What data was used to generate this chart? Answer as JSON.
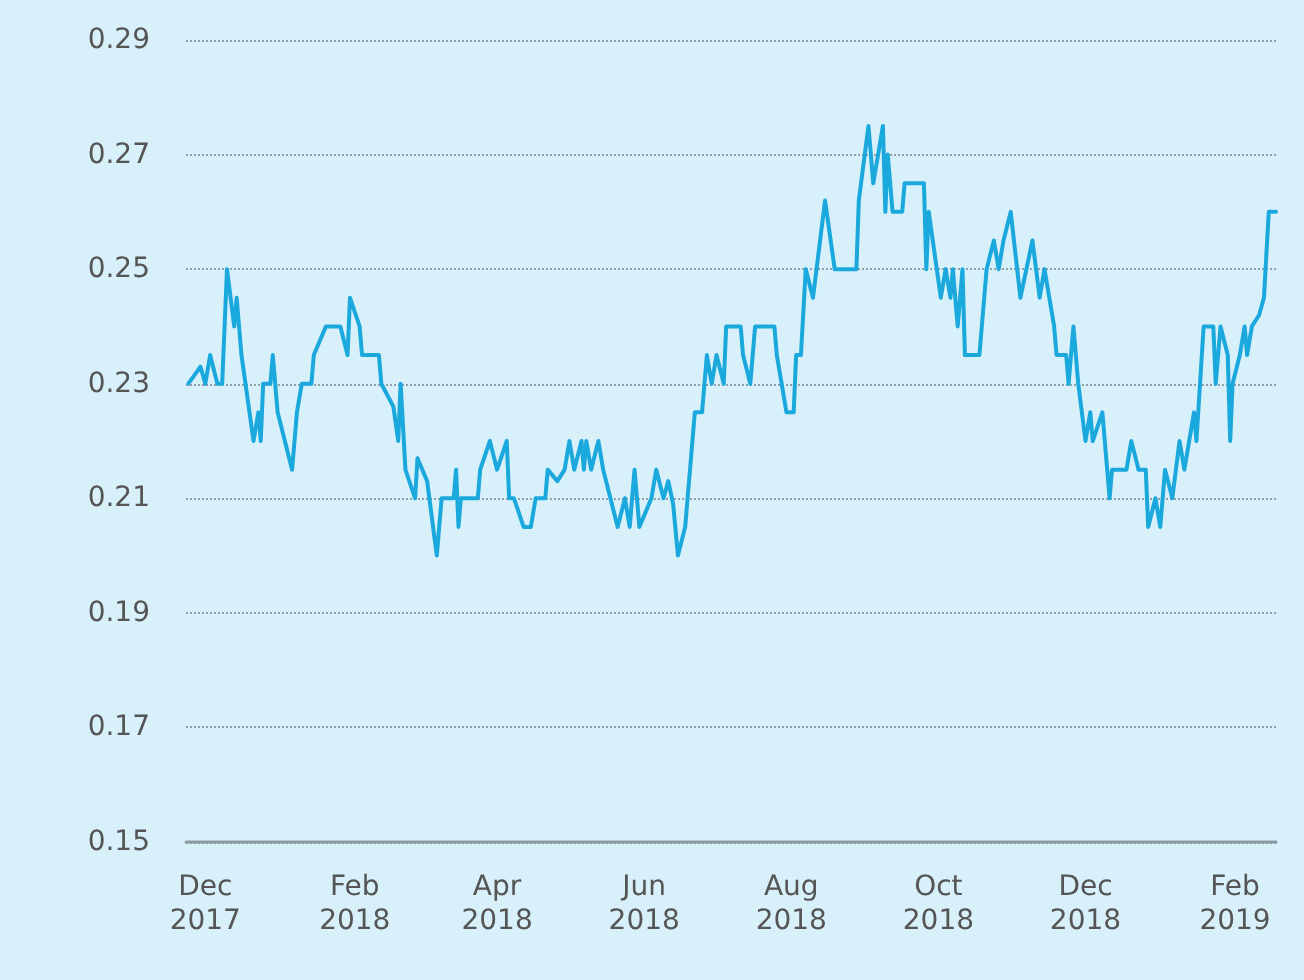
{
  "chart_data": {
    "type": "line",
    "xlim": [
      "2017-11-23",
      "2019-02-18"
    ],
    "ylim": [
      0.15,
      0.29
    ],
    "yticks": [
      0.15,
      0.17,
      0.19,
      0.21,
      0.23,
      0.25,
      0.27,
      0.29
    ],
    "xticks": [
      {
        "value": "2017-12-01",
        "label": "Dec\n2017"
      },
      {
        "value": "2018-02-01",
        "label": "Feb\n2018"
      },
      {
        "value": "2018-04-01",
        "label": "Apr\n2018"
      },
      {
        "value": "2018-06-01",
        "label": "Jun\n2018"
      },
      {
        "value": "2018-08-01",
        "label": "Aug\n2018"
      },
      {
        "value": "2018-10-01",
        "label": "Oct\n2018"
      },
      {
        "value": "2018-12-01",
        "label": "Dec\n2018"
      },
      {
        "value": "2019-02-01",
        "label": "Feb\n2019"
      }
    ],
    "grid": "y",
    "marker": "none",
    "line_style": "solid",
    "x": [
      "2017-11-24",
      "2017-11-29",
      "2017-12-01",
      "2017-12-03",
      "2017-12-06",
      "2017-12-08",
      "2017-12-10",
      "2017-12-13",
      "2017-12-14",
      "2017-12-16",
      "2017-12-21",
      "2017-12-23",
      "2017-12-24",
      "2017-12-25",
      "2017-12-28",
      "2017-12-29",
      "2017-12-31",
      "2018-01-06",
      "2018-01-08",
      "2018-01-10",
      "2018-01-14",
      "2018-01-15",
      "2018-01-20",
      "2018-01-26",
      "2018-01-29",
      "2018-01-30",
      "2018-02-03",
      "2018-02-04",
      "2018-02-11",
      "2018-02-12",
      "2018-02-17",
      "2018-02-19",
      "2018-02-20",
      "2018-02-22",
      "2018-02-26",
      "2018-02-27",
      "2018-03-03",
      "2018-03-07",
      "2018-03-09",
      "2018-03-14",
      "2018-03-15",
      "2018-03-16",
      "2018-03-17",
      "2018-03-24",
      "2018-03-25",
      "2018-03-29",
      "2018-04-01",
      "2018-04-05",
      "2018-04-06",
      "2018-04-08",
      "2018-04-12",
      "2018-04-15",
      "2018-04-17",
      "2018-04-21",
      "2018-04-22",
      "2018-04-26",
      "2018-04-29",
      "2018-05-01",
      "2018-05-03",
      "2018-05-06",
      "2018-05-07",
      "2018-05-08",
      "2018-05-10",
      "2018-05-13",
      "2018-05-15",
      "2018-05-21",
      "2018-05-24",
      "2018-05-26",
      "2018-05-28",
      "2018-05-30",
      "2018-06-04",
      "2018-06-06",
      "2018-06-09",
      "2018-06-11",
      "2018-06-13",
      "2018-06-15",
      "2018-06-18",
      "2018-06-22",
      "2018-06-25",
      "2018-06-27",
      "2018-06-29",
      "2018-07-01",
      "2018-07-04",
      "2018-07-05",
      "2018-07-11",
      "2018-07-12",
      "2018-07-15",
      "2018-07-17",
      "2018-07-25",
      "2018-07-26",
      "2018-07-30",
      "2018-08-02",
      "2018-08-03",
      "2018-08-05",
      "2018-08-07",
      "2018-08-10",
      "2018-08-15",
      "2018-08-19",
      "2018-08-28",
      "2018-08-29",
      "2018-09-02",
      "2018-09-04",
      "2018-09-06",
      "2018-09-08",
      "2018-09-09",
      "2018-09-10",
      "2018-09-12",
      "2018-09-16",
      "2018-09-17",
      "2018-09-25",
      "2018-09-26",
      "2018-09-27",
      "2018-10-02",
      "2018-10-04",
      "2018-10-06",
      "2018-10-07",
      "2018-10-09",
      "2018-10-11",
      "2018-10-12",
      "2018-10-18",
      "2018-10-21",
      "2018-10-24",
      "2018-10-26",
      "2018-10-28",
      "2018-10-31",
      "2018-11-04",
      "2018-11-09",
      "2018-11-12",
      "2018-11-14",
      "2018-11-18",
      "2018-11-19",
      "2018-11-23",
      "2018-11-24",
      "2018-11-26",
      "2018-11-28",
      "2018-12-01",
      "2018-12-03",
      "2018-12-04",
      "2018-12-08",
      "2018-12-10",
      "2018-12-11",
      "2018-12-12",
      "2018-12-18",
      "2018-12-20",
      "2018-12-23",
      "2018-12-26",
      "2018-12-27",
      "2018-12-30",
      "2019-01-01",
      "2019-01-03",
      "2019-01-06",
      "2019-01-09",
      "2019-01-11",
      "2019-01-15",
      "2019-01-16",
      "2019-01-19",
      "2019-01-23",
      "2019-01-24",
      "2019-01-26",
      "2019-01-29",
      "2019-01-30",
      "2019-01-31",
      "2019-02-03",
      "2019-02-05",
      "2019-02-06",
      "2019-02-08",
      "2019-02-11",
      "2019-02-13",
      "2019-02-15",
      "2019-02-18"
    ],
    "series": [
      {
        "color": "#1ba8dd",
        "values": [
          0.23,
          0.233,
          0.23,
          0.235,
          0.23,
          0.23,
          0.25,
          0.24,
          0.245,
          0.235,
          0.22,
          0.225,
          0.22,
          0.23,
          0.23,
          0.235,
          0.225,
          0.215,
          0.225,
          0.23,
          0.23,
          0.235,
          0.24,
          0.24,
          0.235,
          0.245,
          0.24,
          0.235,
          0.235,
          0.23,
          0.226,
          0.22,
          0.23,
          0.215,
          0.21,
          0.217,
          0.213,
          0.2,
          0.21,
          0.21,
          0.215,
          0.205,
          0.21,
          0.21,
          0.215,
          0.22,
          0.215,
          0.22,
          0.21,
          0.21,
          0.205,
          0.205,
          0.21,
          0.21,
          0.215,
          0.213,
          0.215,
          0.22,
          0.215,
          0.22,
          0.215,
          0.22,
          0.215,
          0.22,
          0.215,
          0.205,
          0.21,
          0.205,
          0.215,
          0.205,
          0.21,
          0.215,
          0.21,
          0.213,
          0.209,
          0.2,
          0.205,
          0.225,
          0.225,
          0.235,
          0.23,
          0.235,
          0.23,
          0.24,
          0.24,
          0.235,
          0.23,
          0.24,
          0.24,
          0.235,
          0.225,
          0.225,
          0.235,
          0.235,
          0.25,
          0.245,
          0.262,
          0.25,
          0.25,
          0.262,
          0.275,
          0.265,
          0.27,
          0.275,
          0.26,
          0.27,
          0.26,
          0.26,
          0.265,
          0.265,
          0.25,
          0.26,
          0.245,
          0.25,
          0.245,
          0.25,
          0.24,
          0.25,
          0.235,
          0.235,
          0.25,
          0.255,
          0.25,
          0.255,
          0.26,
          0.245,
          0.255,
          0.245,
          0.25,
          0.24,
          0.235,
          0.235,
          0.23,
          0.24,
          0.23,
          0.22,
          0.225,
          0.22,
          0.225,
          0.215,
          0.21,
          0.215,
          0.215,
          0.22,
          0.215,
          0.215,
          0.205,
          0.21,
          0.205,
          0.215,
          0.21,
          0.22,
          0.215,
          0.225,
          0.22,
          0.24,
          0.24,
          0.23,
          0.24,
          0.235,
          0.22,
          0.23,
          0.235,
          0.24,
          0.235,
          0.24,
          0.242,
          0.245,
          0.26,
          0.26
        ]
      }
    ]
  }
}
